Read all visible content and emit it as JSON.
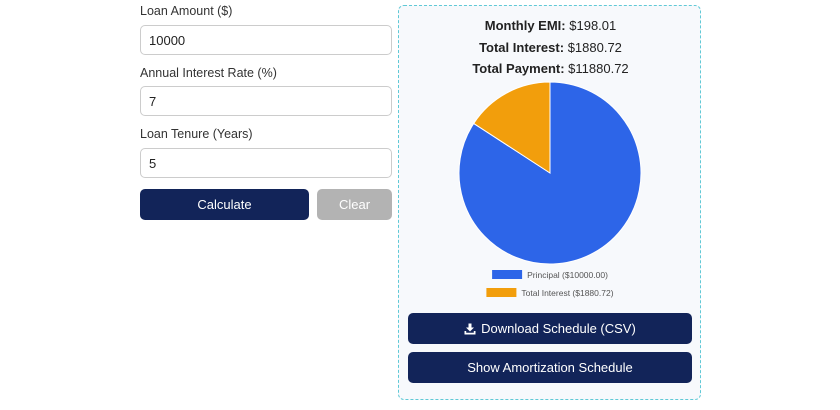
{
  "form": {
    "loan_amount_label": "Loan Amount ($)",
    "loan_amount_value": "10000",
    "interest_rate_label": "Annual Interest Rate (%)",
    "interest_rate_value": "7",
    "tenure_label": "Loan Tenure (Years)",
    "tenure_value": "5",
    "calculate_label": "Calculate",
    "clear_label": "Clear"
  },
  "results": {
    "emi_label": "Monthly EMI:",
    "emi_value": "$198.01",
    "interest_label": "Total Interest:",
    "interest_value": "$1880.72",
    "payment_label": "Total Payment:",
    "payment_value": "$11880.72"
  },
  "chart_data": {
    "type": "pie",
    "slices": [
      {
        "label": "Principal ($10000.00)",
        "value": 10000.0,
        "color": "#2d65e8"
      },
      {
        "label": "Total Interest ($1880.72)",
        "value": 1880.72,
        "color": "#f29e0c"
      }
    ],
    "start": "top, clockwise",
    "legend_position": "bottom"
  },
  "actions": {
    "download_label": "Download Schedule (CSV)",
    "download_icon": "download-icon",
    "schedule_label": "Show Amortization Schedule"
  },
  "colors": {
    "primary_button": "#122459",
    "clear_button": "#b3b3b3",
    "panel_border": "#60c9d6"
  }
}
